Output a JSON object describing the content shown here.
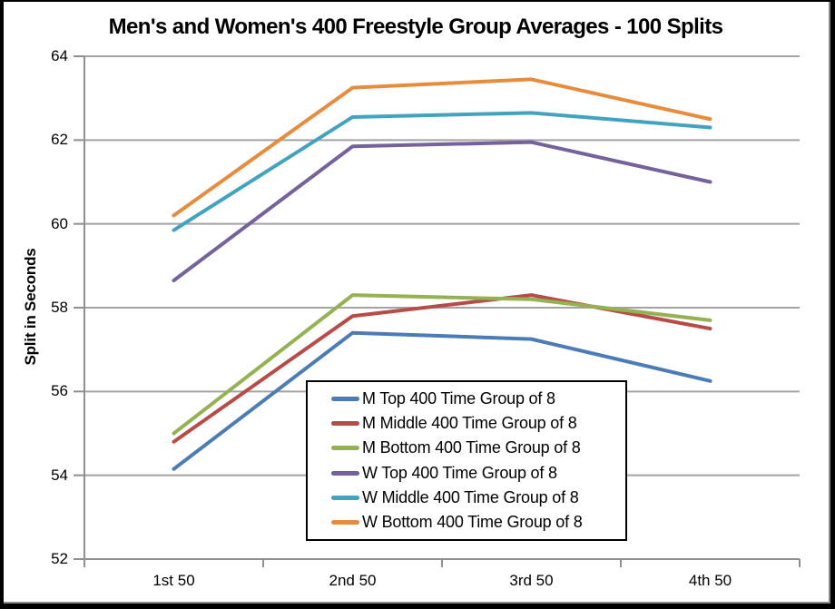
{
  "frame": {
    "border_color": "#000000",
    "shadow_color": "#8a8a8a",
    "background": "#ffffff"
  },
  "chart_data": {
    "type": "line",
    "title": "Men's and Women's 400 Freestyle Group Averages - 100 Splits",
    "xlabel": "",
    "ylabel": "Split in Seconds",
    "categories": [
      "1st 50",
      "2nd 50",
      "3rd 50",
      "4th 50"
    ],
    "ylim": [
      52,
      64
    ],
    "ytick_step": 2,
    "ytick_labels": [
      "64",
      "62",
      "60",
      "58",
      "56",
      "54",
      "52"
    ],
    "grid": true,
    "axis_color": "#8f8f8f",
    "grid_color": "#a3a3a3",
    "legend_position": "inside-bottom-center",
    "legend_border_color": "#000000",
    "series": [
      {
        "name": "M Top 400 Time Group of 8",
        "color": "#4c7cb5",
        "values": [
          54.15,
          57.4,
          57.25,
          56.25
        ]
      },
      {
        "name": "M Middle 400 Time Group of 8",
        "color": "#b84b47",
        "values": [
          54.8,
          57.8,
          58.3,
          57.5
        ]
      },
      {
        "name": "M Bottom 400 Time Group of 8",
        "color": "#94b252",
        "values": [
          55.0,
          58.3,
          58.2,
          57.7
        ]
      },
      {
        "name": "W Top 400 Time Group of 8",
        "color": "#75619b",
        "values": [
          58.65,
          61.85,
          61.95,
          61.0
        ]
      },
      {
        "name": "W Middle 400 Time Group of 8",
        "color": "#43a3be",
        "values": [
          59.85,
          62.55,
          62.65,
          62.3
        ]
      },
      {
        "name": "W Bottom 400 Time Group of 8",
        "color": "#e78c3c",
        "values": [
          60.2,
          63.25,
          63.45,
          62.5
        ]
      }
    ]
  }
}
